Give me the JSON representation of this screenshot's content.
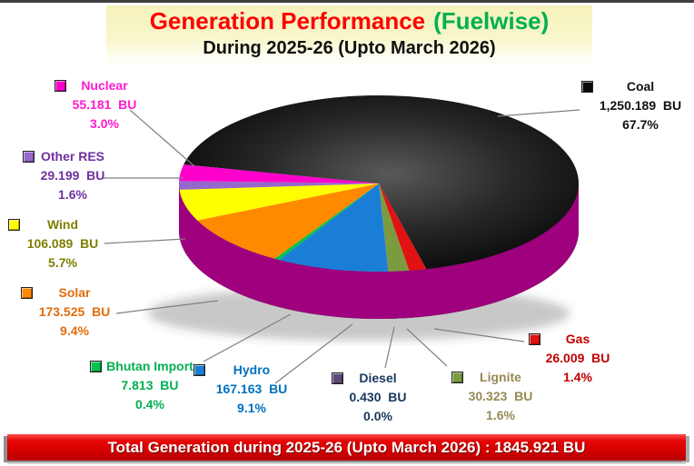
{
  "header": {
    "title_main": "Generation Performance",
    "title_paren": "(Fuelwise)",
    "subtitle": "During 2025-26 (Upto March 2026)"
  },
  "footer": {
    "text": "Total Generation during 2025-26 (Upto March 2026) : 1845.921 BU"
  },
  "colors": {
    "title_red": "#fd0202",
    "title_green": "#00b050",
    "title_band_yellow": "#f5f2bb",
    "banner_red": "#d80000",
    "leader_line": "#7f7f7f",
    "background": "#ffffff"
  },
  "chart_data": {
    "type": "pie",
    "style": "3d-pie",
    "title": "Generation Performance (Fuelwise)",
    "subtitle": "During 2025-26 (Upto March 2026)",
    "unit": "BU",
    "total_bu": 1845.921,
    "start_angle_deg": 192.4,
    "direction": "clockwise",
    "legend_position": "around-chart",
    "slices": [
      {
        "label": "Coal",
        "value_bu": 1250.189,
        "value_text": "1,250.189  BU",
        "pct_text": "67.7%",
        "color": "#0b0b0b",
        "label_color": "#111111"
      },
      {
        "label": "Gas",
        "value_bu": 26.009,
        "value_text": "26.009  BU",
        "pct_text": "1.4%",
        "color": "#e11212",
        "label_color": "#c00000"
      },
      {
        "label": "Lignite",
        "value_bu": 30.323,
        "value_text": "30.323  BU",
        "pct_text": "1.6%",
        "color": "#7a9b3e",
        "label_color": "#948a54"
      },
      {
        "label": "Diesel",
        "value_bu": 0.43,
        "value_text": "0.430  BU",
        "pct_text": "0.0%",
        "color": "#5f497a",
        "label_color": "#17375e"
      },
      {
        "label": "Hydro",
        "value_bu": 167.163,
        "value_text": "167.163  BU",
        "pct_text": "9.1%",
        "color": "#1b7ed6",
        "label_color": "#0070c0"
      },
      {
        "label": "Bhutan Import",
        "value_bu": 7.813,
        "value_text": "7.813  BU",
        "pct_text": "0.4%",
        "color": "#00c24f",
        "label_color": "#00b050"
      },
      {
        "label": "Solar",
        "value_bu": 173.525,
        "value_text": "173.525  BU",
        "pct_text": "9.4%",
        "color": "#ff8a00",
        "label_color": "#e36c0a"
      },
      {
        "label": "Wind",
        "value_bu": 106.089,
        "value_text": "106.089  BU",
        "pct_text": "5.7%",
        "color": "#ffff00",
        "label_color": "#7f7f00"
      },
      {
        "label": "Other RES",
        "value_bu": 29.199,
        "value_text": "29.199  BU",
        "pct_text": "1.6%",
        "color": "#9569cb",
        "label_color": "#7030a0"
      },
      {
        "label": "Nuclear",
        "value_bu": 55.181,
        "value_text": "55.181  BU",
        "pct_text": "3.0%",
        "color": "#ff00cc",
        "label_color": "#ff1ad1"
      }
    ]
  }
}
